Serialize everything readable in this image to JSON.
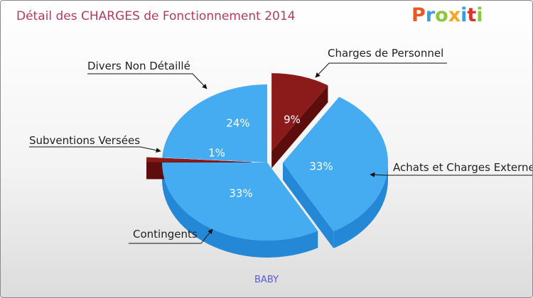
{
  "chart_data": {
    "type": "pie",
    "title": "Détail des CHARGES de Fonctionnement 2014",
    "category": "BABY",
    "slices": [
      {
        "label": "Charges de Personnel",
        "value": 9,
        "value_label": "9%",
        "color": "#8b1a1a",
        "side_color": "#5e0d0d",
        "exploded": true
      },
      {
        "label": "Achats et Charges Externes",
        "value": 33,
        "value_label": "33%",
        "color": "#46acf2",
        "side_color": "#2588d6",
        "exploded": true
      },
      {
        "label": "Contingents",
        "value": 33,
        "value_label": "33%",
        "color": "#46acf2",
        "side_color": "#2588d6",
        "exploded": false
      },
      {
        "label": "Subventions Versées",
        "value": 1,
        "value_label": "1%",
        "color": "#8b1a1a",
        "side_color": "#5e0d0d",
        "exploded": true
      },
      {
        "label": "Divers Non Détaillé",
        "value": 24,
        "value_label": "24%",
        "color": "#46acf2",
        "side_color": "#2588d6",
        "exploded": false
      }
    ]
  },
  "logo": {
    "letters": [
      "P",
      "r",
      "o",
      "x",
      "i",
      "t",
      "i"
    ],
    "colors": [
      "#e65a28",
      "#3a9de0",
      "#8cc63f",
      "#f5a623",
      "#3a9de0",
      "#d9342b",
      "#8cc63f"
    ]
  }
}
